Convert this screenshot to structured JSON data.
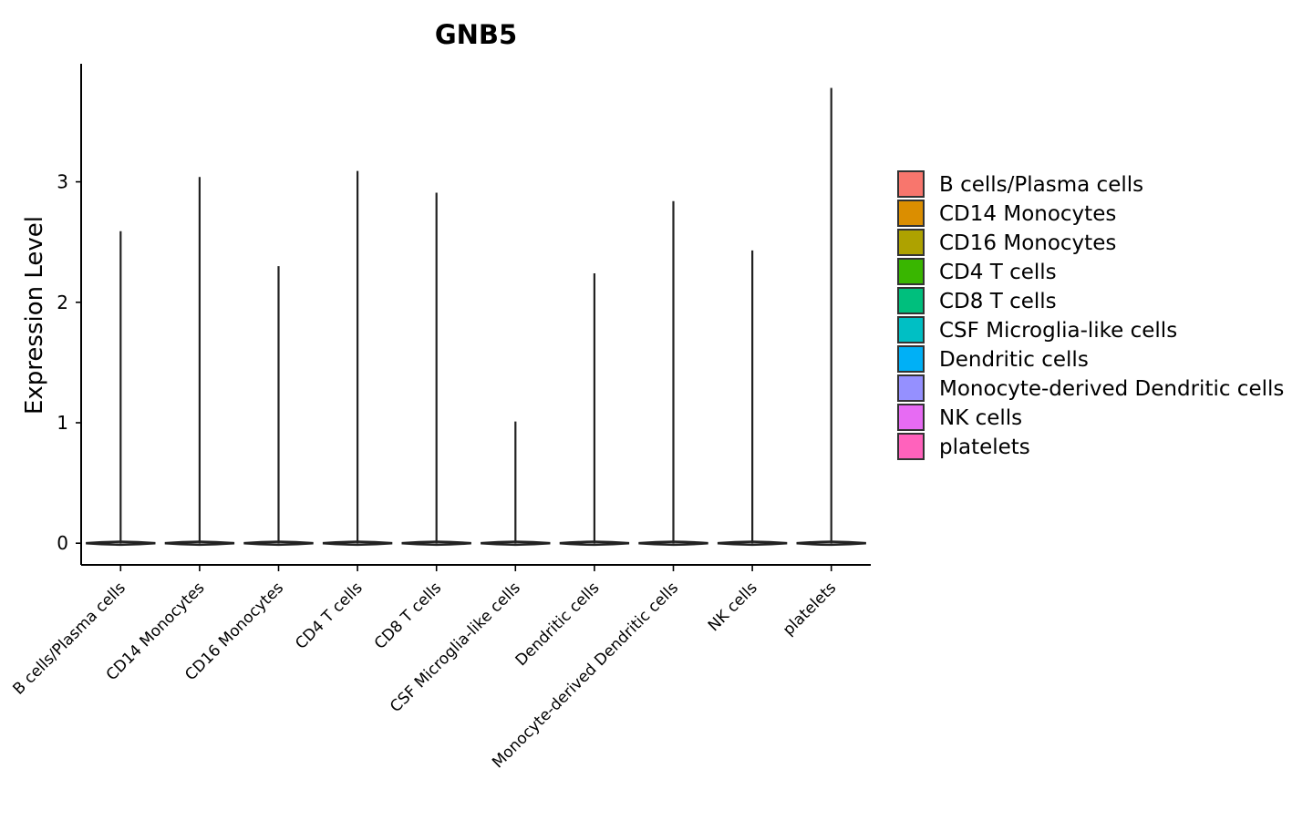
{
  "chart_data": {
    "type": "violin",
    "title": "GNB5",
    "xlabel": "",
    "ylabel": "Expression Level",
    "ylim": [
      -0.18,
      3.98
    ],
    "yticks": [
      0,
      1,
      2,
      3
    ],
    "categories": [
      "B cells/Plasma cells",
      "CD14 Monocytes",
      "CD16 Monocytes",
      "CD4 T cells",
      "CD8 T cells",
      "CSF Microglia-like cells",
      "Dendritic cells",
      "Monocyte-derived Dendritic cells",
      "NK cells",
      "platelets"
    ],
    "max_values": [
      2.59,
      3.04,
      2.3,
      3.09,
      2.91,
      1.01,
      2.24,
      2.84,
      2.43,
      3.78
    ],
    "min_values": [
      0,
      0,
      0,
      0,
      0,
      0,
      0,
      0,
      0,
      0
    ],
    "colors": [
      "#F8766D",
      "#DB8E00",
      "#AEA200",
      "#39B600",
      "#00BF7D",
      "#00BFC4",
      "#00B0F6",
      "#9590FF",
      "#E76BF3",
      "#FF62BC"
    ],
    "legend": {
      "position": "right",
      "entries": [
        "B cells/Plasma cells",
        "CD14 Monocytes",
        "CD16 Monocytes",
        "CD4 T cells",
        "CD8 T cells",
        "CSF Microglia-like cells",
        "Dendritic cells",
        "Monocyte-derived Dendritic cells",
        "NK cells",
        "platelets"
      ]
    },
    "grid": false
  }
}
